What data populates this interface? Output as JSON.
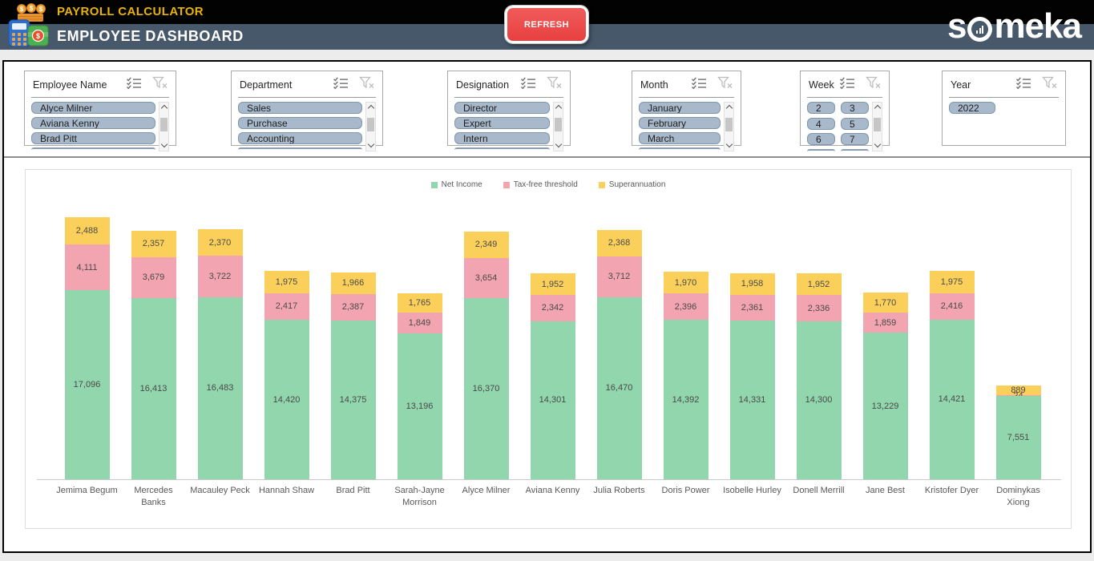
{
  "header": {
    "app_title": "PAYROLL CALCULATOR",
    "page_title": "EMPLOYEE DASHBOARD",
    "refresh_label": "REFRESH",
    "brand": "someka",
    "colors": {
      "top_bg": "#020202",
      "bar_bg": "#47586B",
      "accent_gold": "#E9B400",
      "refresh_red": "#E84040"
    }
  },
  "slicers": [
    {
      "title": "Employee Name",
      "items": [
        "Alyce Milner",
        "Aviana Kenny",
        "Brad Pitt"
      ],
      "has_scrollbar": true,
      "more_below": true
    },
    {
      "title": "Department",
      "items": [
        "Sales",
        "Purchase",
        "Accounting"
      ],
      "has_scrollbar": true,
      "more_below": true
    },
    {
      "title": "Designation",
      "items": [
        "Director",
        "Expert",
        "Intern"
      ],
      "has_scrollbar": true,
      "more_below": true
    },
    {
      "title": "Month",
      "items": [
        "January",
        "February",
        "March"
      ],
      "has_scrollbar": true,
      "more_below": true
    },
    {
      "title": "Week",
      "items": [
        "2",
        "3",
        "4",
        "5",
        "6",
        "7"
      ],
      "has_scrollbar": true,
      "more_below": true
    },
    {
      "title": "Year",
      "items": [
        "2022"
      ],
      "has_scrollbar": false,
      "more_below": false
    }
  ],
  "chart_data": {
    "type": "bar",
    "stacked": true,
    "categories": [
      "Jemima Begum",
      "Mercedes Banks",
      "Macauley Peck",
      "Hannah Shaw",
      "Brad Pitt",
      "Sarah-Jayne Morrison",
      "Alyce Milner",
      "Aviana Kenny",
      "Julia Roberts",
      "Doris Power",
      "Isobelle Hurley",
      "Donell Merrill",
      "Jane Best",
      "Kristofer Dyer",
      "Dominykas Xiong"
    ],
    "series": [
      {
        "name": "Net Income",
        "color": "#92D6AE",
        "values": [
          17096,
          16413,
          16483,
          14420,
          14375,
          13196,
          16370,
          14301,
          16470,
          14392,
          14331,
          14300,
          13229,
          14421,
          7551
        ]
      },
      {
        "name": "Tax-free threshold",
        "color": "#F2A5B0",
        "values": [
          4111,
          3679,
          3722,
          2417,
          2387,
          1849,
          3654,
          2342,
          3712,
          2396,
          2361,
          2336,
          1859,
          2416,
          24
        ]
      },
      {
        "name": "Superannuation",
        "color": "#FBD05A",
        "values": [
          2488,
          2357,
          2370,
          1975,
          1966,
          1765,
          2349,
          1952,
          2368,
          1970,
          1958,
          1952,
          1770,
          1975,
          889
        ]
      }
    ],
    "value_labels": true,
    "legend_position": "top",
    "grid": false,
    "ymax": 23695
  }
}
